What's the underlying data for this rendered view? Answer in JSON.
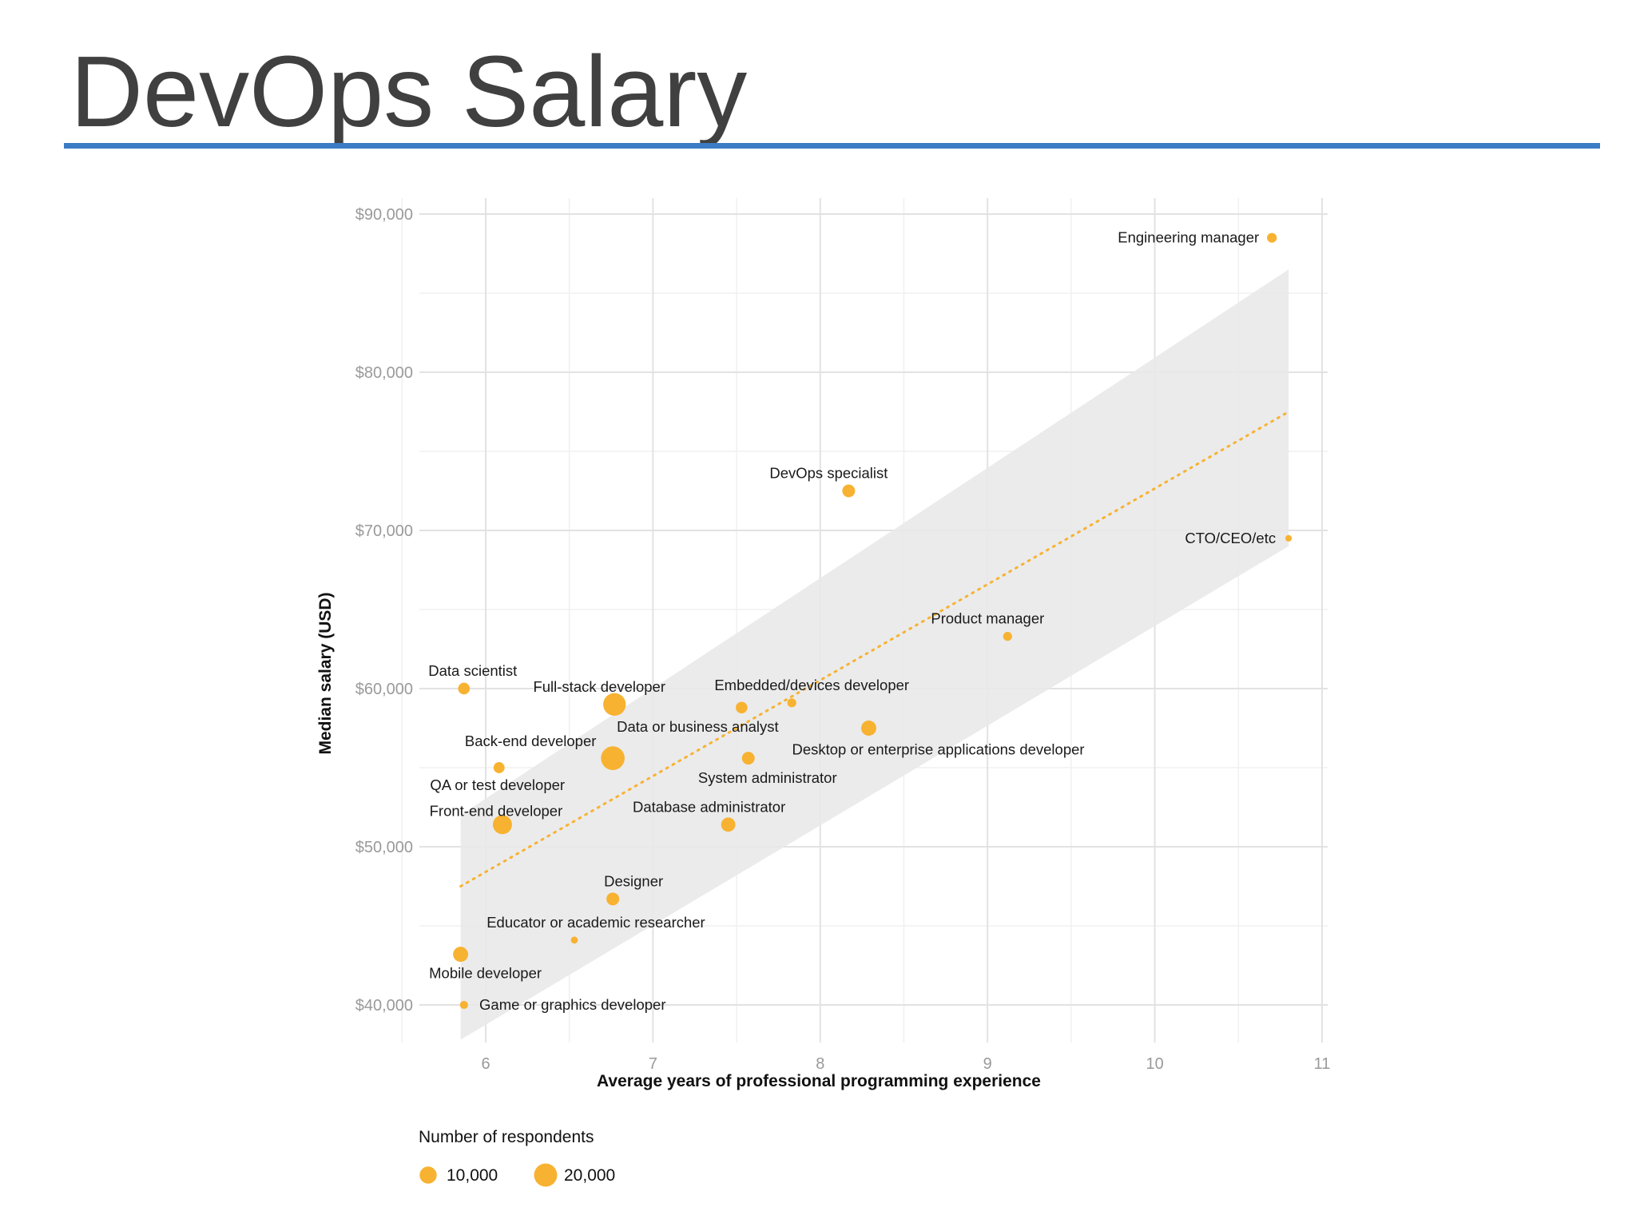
{
  "slide": {
    "title": "DevOps Salary"
  },
  "colors": {
    "accent_rule": "#3a7dc4",
    "point": "#f8b231",
    "band": "#e9e9e9",
    "grid": "#e2e2e2"
  },
  "chart_data": {
    "type": "scatter",
    "xlabel": "Average years of professional programming experience",
    "ylabel": "Median salary (USD)",
    "xlim": [
      5.6,
      11.05
    ],
    "ylim": [
      37700,
      91000
    ],
    "x_ticks": [
      6,
      7,
      8,
      9,
      10,
      11
    ],
    "y_ticks": [
      40000,
      50000,
      60000,
      70000,
      80000,
      90000
    ],
    "x_tick_labels": [
      "6",
      "7",
      "8",
      "9",
      "10",
      "11"
    ],
    "y_tick_labels": [
      "$40,000",
      "$50,000",
      "$60,000",
      "$70,000",
      "$80,000",
      "$90,000"
    ],
    "grid": true,
    "size_legend": {
      "title": "Number of respondents",
      "entries": [
        {
          "label": "10,000",
          "respondents": 10000
        },
        {
          "label": "20,000",
          "respondents": 20000
        }
      ]
    },
    "trend_line": {
      "style": "dotted",
      "x": [
        5.85,
        10.8
      ],
      "y": [
        47500,
        77500
      ]
    },
    "confidence_band": {
      "x": [
        5.85,
        10.8
      ],
      "lower": [
        37800,
        69000
      ],
      "upper": [
        52000,
        86500
      ]
    },
    "points": [
      {
        "label": "Engineering manager",
        "x": 10.7,
        "y": 88500,
        "respondents": 2500
      },
      {
        "label": "DevOps specialist",
        "x": 8.17,
        "y": 72500,
        "respondents": 5000
      },
      {
        "label": "CTO/CEO/etc",
        "x": 10.8,
        "y": 69500,
        "respondents": 800
      },
      {
        "label": "Product manager",
        "x": 9.12,
        "y": 63300,
        "respondents": 2000
      },
      {
        "label": "Data scientist",
        "x": 5.87,
        "y": 60000,
        "respondents": 4000
      },
      {
        "label": "Full-stack developer",
        "x": 6.77,
        "y": 59000,
        "respondents": 19000
      },
      {
        "label": "Embedded/devices developer",
        "x": 7.83,
        "y": 59100,
        "respondents": 2000
      },
      {
        "label": "Data or business analyst",
        "x": 7.53,
        "y": 58800,
        "respondents": 4000
      },
      {
        "label": "Desktop or enterprise applications developer",
        "x": 8.29,
        "y": 57500,
        "respondents": 7500
      },
      {
        "label": "Back-end developer",
        "x": 6.76,
        "y": 55600,
        "respondents": 21000
      },
      {
        "label": "System administrator",
        "x": 7.57,
        "y": 55600,
        "respondents": 5000
      },
      {
        "label": "QA or test developer",
        "x": 6.08,
        "y": 55000,
        "respondents": 3500
      },
      {
        "label": "Front-end developer",
        "x": 6.1,
        "y": 51400,
        "respondents": 13000
      },
      {
        "label": "Database administrator",
        "x": 7.45,
        "y": 51400,
        "respondents": 6500
      },
      {
        "label": "Designer",
        "x": 6.76,
        "y": 46700,
        "respondents": 5000
      },
      {
        "label": "Educator or academic researcher",
        "x": 6.53,
        "y": 44100,
        "respondents": 1000
      },
      {
        "label": "Mobile developer",
        "x": 5.85,
        "y": 43200,
        "respondents": 7500
      },
      {
        "label": "Game or graphics developer",
        "x": 5.87,
        "y": 40000,
        "respondents": 1500
      }
    ]
  }
}
